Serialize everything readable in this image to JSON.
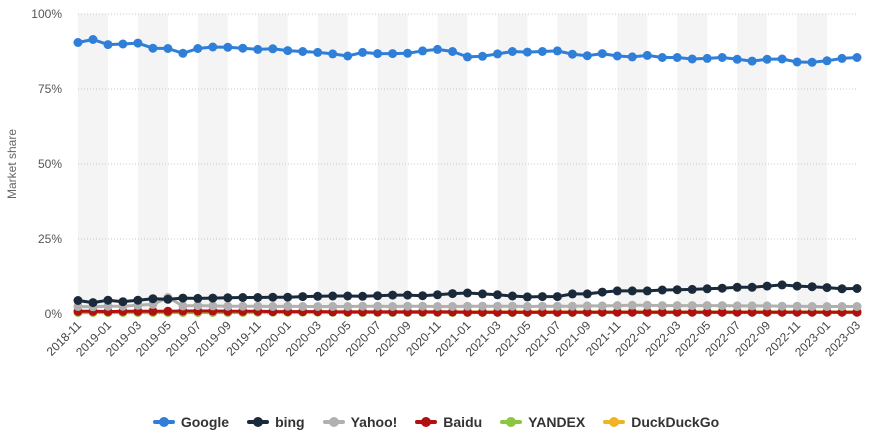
{
  "chart_data": {
    "type": "line",
    "ylabel": "Market share",
    "ylim": [
      0,
      100
    ],
    "y_ticks": [
      "0%",
      "25%",
      "50%",
      "75%",
      "100%"
    ],
    "y_tick_values": [
      0,
      25,
      50,
      75,
      100
    ],
    "grid": "horizontal dotted",
    "legend_position": "bottom-center",
    "x": [
      "2018-11",
      "2018-12",
      "2019-01",
      "2019-02",
      "2019-03",
      "2019-04",
      "2019-05",
      "2019-06",
      "2019-07",
      "2019-08",
      "2019-09",
      "2019-10",
      "2019-11",
      "2019-12",
      "2020-01",
      "2020-02",
      "2020-03",
      "2020-04",
      "2020-05",
      "2020-06",
      "2020-07",
      "2020-08",
      "2020-09",
      "2020-10",
      "2020-11",
      "2020-12",
      "2021-01",
      "2021-02",
      "2021-03",
      "2021-04",
      "2021-05",
      "2021-06",
      "2021-07",
      "2021-08",
      "2021-09",
      "2021-10",
      "2021-11",
      "2021-12",
      "2022-01",
      "2022-02",
      "2022-03",
      "2022-04",
      "2022-05",
      "2022-06",
      "2022-07",
      "2022-08",
      "2022-09",
      "2022-10",
      "2022-11",
      "2022-12",
      "2023-01",
      "2023-02",
      "2023-03"
    ],
    "x_tick_labels": [
      "2018-11",
      "2019-01",
      "2019-03",
      "2019-05",
      "2019-07",
      "2019-09",
      "2019-11",
      "2020-01",
      "2020-03",
      "2020-05",
      "2020-07",
      "2020-09",
      "2020-11",
      "2021-01",
      "2021-03",
      "2021-05",
      "2021-07",
      "2021-09",
      "2021-11",
      "2022-01",
      "2022-03",
      "2022-05",
      "2022-07",
      "2022-09",
      "2022-11",
      "2023-01",
      "2023-03"
    ],
    "series": [
      {
        "name": "Google",
        "color": "#2f7ed8",
        "values": [
          90.5,
          91.5,
          89.8,
          90.0,
          90.3,
          88.6,
          88.5,
          86.9,
          88.5,
          89.0,
          88.9,
          88.6,
          88.2,
          88.4,
          87.8,
          87.5,
          87.2,
          86.7,
          86.0,
          87.2,
          86.8,
          86.8,
          86.9,
          87.7,
          88.2,
          87.5,
          85.7,
          85.9,
          86.7,
          87.5,
          87.3,
          87.5,
          87.7,
          86.6,
          86.1,
          86.8,
          86.0,
          85.7,
          86.2,
          85.5,
          85.5,
          85.0,
          85.2,
          85.5,
          84.9,
          84.3,
          84.9,
          85.0,
          84.0,
          83.9,
          84.4,
          85.2,
          85.5
        ]
      },
      {
        "name": "bing",
        "color": "#1a2a3a",
        "values": [
          4.5,
          3.8,
          4.6,
          4.1,
          4.6,
          5.1,
          4.9,
          5.3,
          5.2,
          5.3,
          5.4,
          5.5,
          5.5,
          5.6,
          5.6,
          5.8,
          5.9,
          6.0,
          6.0,
          5.9,
          6.1,
          6.3,
          6.3,
          6.1,
          6.4,
          6.8,
          7.0,
          6.7,
          6.4,
          6.0,
          5.7,
          5.8,
          5.8,
          6.7,
          6.7,
          7.3,
          7.7,
          7.7,
          7.7,
          8.0,
          8.1,
          8.2,
          8.4,
          8.6,
          8.9,
          8.9,
          9.3,
          9.7,
          9.3,
          9.1,
          8.8,
          8.4,
          8.5
        ]
      },
      {
        "name": "Yahoo!",
        "color": "#b0b0b0",
        "values": [
          2.5,
          2.4,
          2.6,
          2.6,
          2.9,
          3.2,
          5.5,
          2.7,
          2.8,
          2.7,
          2.6,
          2.6,
          2.6,
          2.5,
          2.6,
          2.5,
          2.5,
          2.5,
          2.5,
          2.6,
          2.6,
          2.5,
          2.6,
          2.6,
          2.5,
          2.5,
          2.6,
          2.6,
          2.6,
          2.6,
          2.5,
          2.6,
          2.6,
          2.6,
          2.7,
          2.7,
          2.8,
          2.9,
          2.9,
          2.8,
          2.8,
          2.8,
          2.8,
          2.8,
          2.7,
          2.7,
          2.7,
          2.6,
          2.6,
          2.5,
          2.5,
          2.5,
          2.5
        ]
      },
      {
        "name": "Baidu",
        "color": "#b01010",
        "values": [
          0.9,
          0.9,
          0.8,
          0.9,
          0.9,
          0.9,
          0.9,
          1.0,
          1.0,
          1.0,
          0.9,
          0.9,
          0.9,
          0.8,
          0.8,
          0.8,
          0.8,
          0.7,
          0.7,
          0.7,
          0.7,
          0.7,
          0.7,
          0.7,
          0.7,
          0.7,
          0.6,
          0.6,
          0.6,
          0.6,
          0.6,
          0.6,
          0.6,
          0.6,
          0.6,
          0.6,
          0.6,
          0.6,
          0.6,
          0.6,
          0.6,
          0.6,
          0.6,
          0.6,
          0.6,
          0.6,
          0.6,
          0.6,
          0.6,
          0.6,
          0.6,
          0.6,
          0.6
        ]
      },
      {
        "name": "YANDEX",
        "color": "#8cc63f",
        "values": [
          0.5,
          0.5,
          0.5,
          0.5,
          0.5,
          0.5,
          0.5,
          0.5,
          0.5,
          0.5,
          0.5,
          0.5,
          0.6,
          0.6,
          0.6,
          0.6,
          0.6,
          0.6,
          0.5,
          0.5,
          0.5,
          0.5,
          0.5,
          0.5,
          0.5,
          0.5,
          0.5,
          0.5,
          0.5,
          0.5,
          0.5,
          0.5,
          0.5,
          0.5,
          0.6,
          0.6,
          0.6,
          0.6,
          0.6,
          0.6,
          0.6,
          0.6,
          0.6,
          0.6,
          0.6,
          0.6,
          0.6,
          0.6,
          0.6,
          0.6,
          0.6,
          0.6,
          0.6
        ]
      },
      {
        "name": "DuckDuckGo",
        "color": "#f0b323",
        "values": [
          0.6,
          0.6,
          0.6,
          0.6,
          0.6,
          0.6,
          0.6,
          0.6,
          0.7,
          0.7,
          0.7,
          0.7,
          0.7,
          0.7,
          0.7,
          0.7,
          0.7,
          0.7,
          0.7,
          0.7,
          0.7,
          0.7,
          0.7,
          0.7,
          0.7,
          0.7,
          0.7,
          0.7,
          0.7,
          0.7,
          0.7,
          0.7,
          0.7,
          0.7,
          0.7,
          0.7,
          0.7,
          0.7,
          0.7,
          0.7,
          0.7,
          0.7,
          0.7,
          0.7,
          0.7,
          0.7,
          0.7,
          0.7,
          0.7,
          0.7,
          0.7,
          0.7,
          0.7
        ]
      }
    ]
  }
}
